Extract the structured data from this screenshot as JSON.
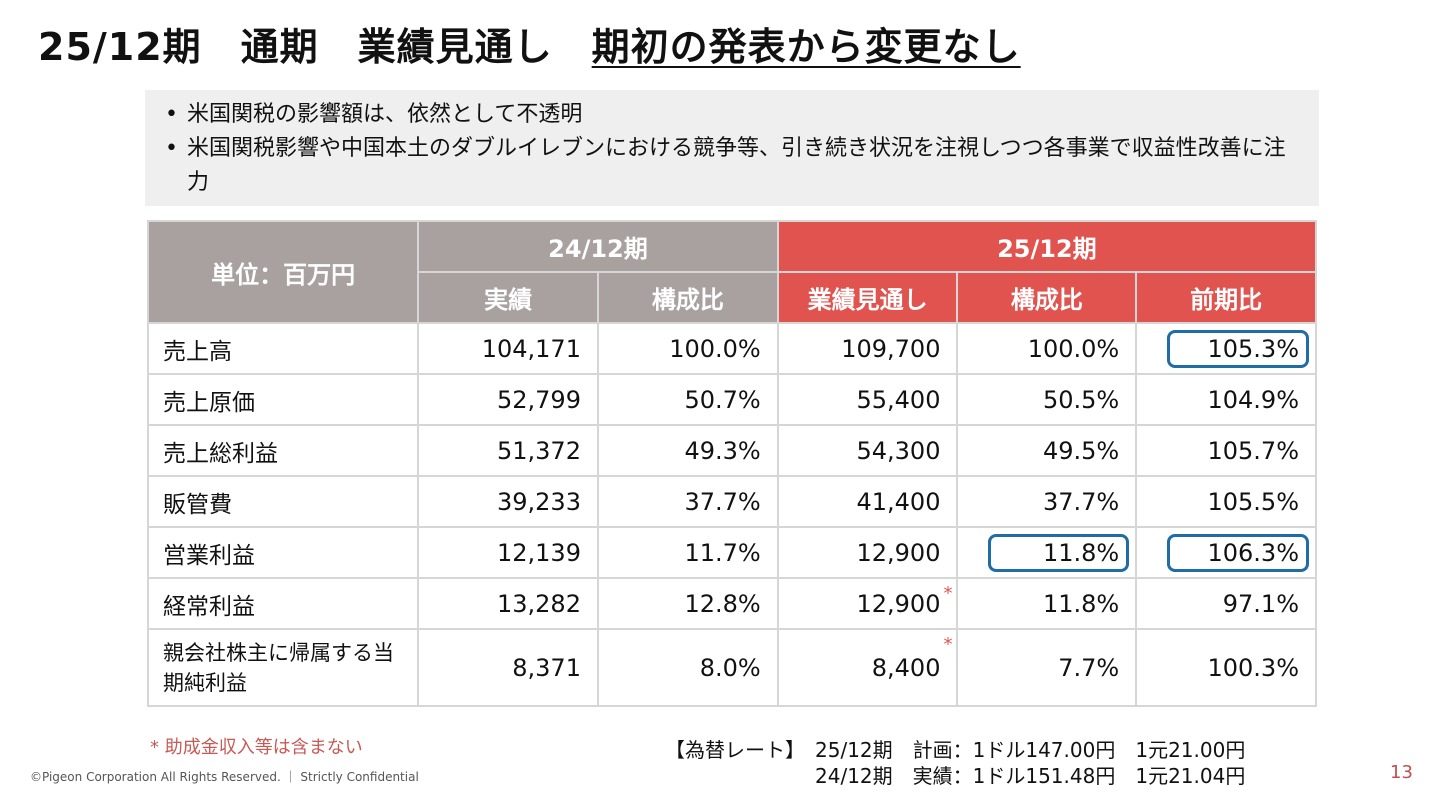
{
  "title": {
    "part1": "25/12期　通期　業績見通し　",
    "part2": "期初の発表から変更なし"
  },
  "bullets": [
    "米国関税の影響額は、依然として不透明",
    "米国関税影響や中国本土のダブルイレブンにおける競争等、引き続き状況を注視しつつ各事業で収益性改善に注力"
  ],
  "table": {
    "unit": "単位：百万円",
    "groups": [
      "24/12期",
      "25/12期"
    ],
    "columns": [
      "実績",
      "構成比",
      "業績見通し",
      "構成比",
      "前期比"
    ],
    "rows": [
      {
        "label": "売上高",
        "values": [
          "104,171",
          "100.0%",
          "109,700",
          "100.0%",
          "105.3%"
        ]
      },
      {
        "label": "売上原価",
        "values": [
          "52,799",
          "50.7%",
          "55,400",
          "50.5%",
          "104.9%"
        ]
      },
      {
        "label": "売上総利益",
        "values": [
          "51,372",
          "49.3%",
          "54,300",
          "49.5%",
          "105.7%"
        ]
      },
      {
        "label": "販管費",
        "values": [
          "39,233",
          "37.7%",
          "41,400",
          "37.7%",
          "105.5%"
        ]
      },
      {
        "label": "営業利益",
        "values": [
          "12,139",
          "11.7%",
          "12,900",
          "11.8%",
          "106.3%"
        ]
      },
      {
        "label": "経常利益",
        "values": [
          "13,282",
          "12.8%",
          "12,900",
          "11.8%",
          "97.1%"
        ]
      },
      {
        "label": "親会社株主に帰属する当期純利益",
        "values": [
          "8,371",
          "8.0%",
          "8,400",
          "7.7%",
          "100.3%"
        ]
      }
    ],
    "asterisk": "*"
  },
  "note": "* 助成金収入等は含まない",
  "fx": {
    "label": "【為替レート】",
    "line1": "25/12期　計画：1ドル147.00円　1元21.00円",
    "line2": "24/12期　実績：1ドル151.48円　1元21.04円"
  },
  "footer": {
    "copyright": "©Pigeon Corporation All Rights Reserved. ｜ Strictly Confidential",
    "page": "13"
  },
  "colors": {
    "header_gray": "#a8a19f",
    "header_red": "#e0534f",
    "highlight_blue": "#1f6ca6"
  }
}
